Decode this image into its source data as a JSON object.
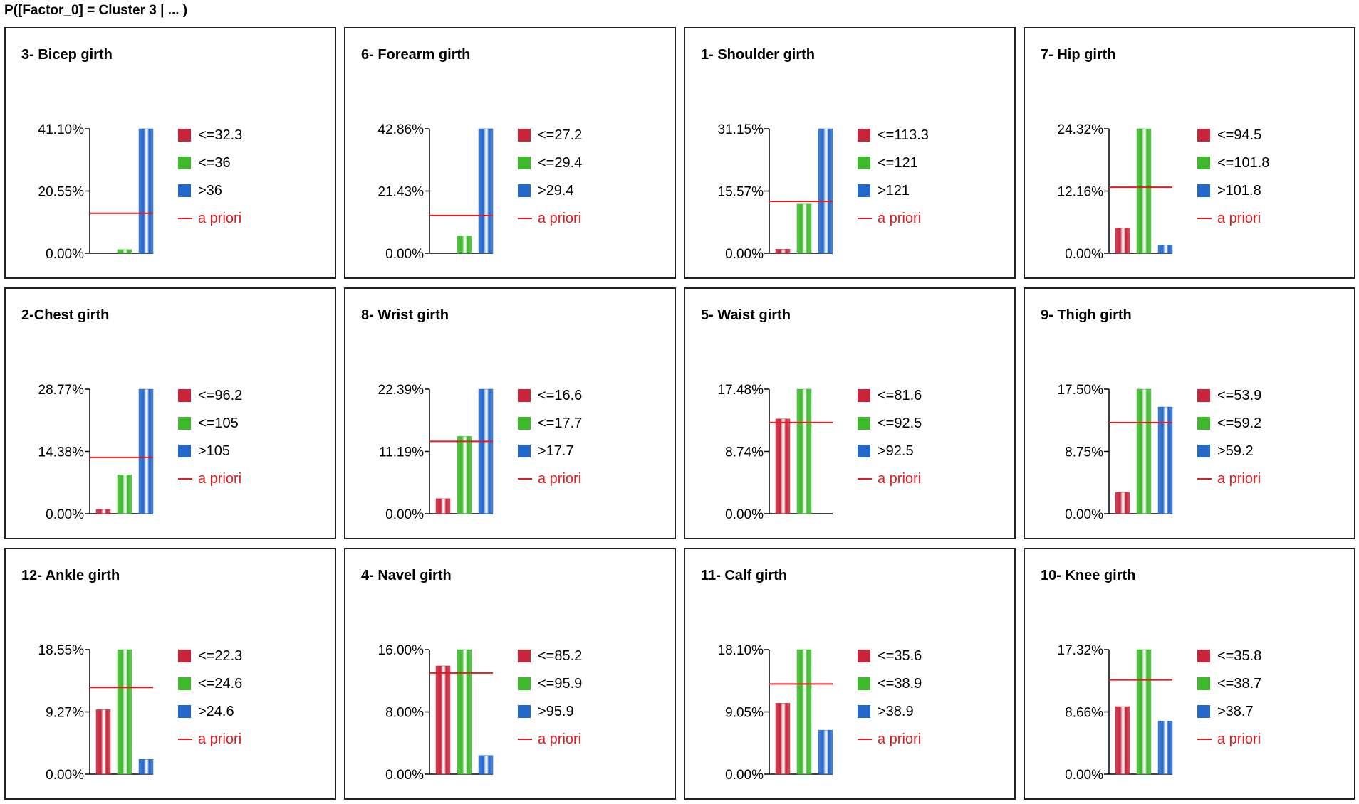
{
  "header": {
    "title": "P([Factor_0] = Cluster 3 | ... )"
  },
  "colors": {
    "bin1": "#c8243a",
    "bin2": "#3fb82e",
    "bin3": "#2468cc",
    "prior": "#e41a1c"
  },
  "legend_prior_label": "a priori",
  "chart_data": [
    {
      "type": "bar",
      "title": "3- Bicep girth",
      "categories": [
        "<=32.3",
        "<=36",
        ">36"
      ],
      "values": [
        0.0,
        1.2,
        41.1
      ],
      "prior": 13.2,
      "yticks": [
        "41.10%",
        "20.55%",
        "0.00%"
      ],
      "ylim": [
        0,
        41.1
      ]
    },
    {
      "type": "bar",
      "title": "6- Forearm girth",
      "categories": [
        "<=27.2",
        "<=29.4",
        ">29.4"
      ],
      "values": [
        0.0,
        6.0,
        42.86
      ],
      "prior": 13.0,
      "yticks": [
        "42.86%",
        "21.43%",
        "0.00%"
      ],
      "ylim": [
        0,
        42.86
      ]
    },
    {
      "type": "bar",
      "title": "1- Shoulder girth",
      "categories": [
        "<=113.3",
        "<=121",
        ">121"
      ],
      "values": [
        1.0,
        12.3,
        31.15
      ],
      "prior": 13.0,
      "yticks": [
        "31.15%",
        "15.57%",
        "0.00%"
      ],
      "ylim": [
        0,
        31.15
      ]
    },
    {
      "type": "bar",
      "title": "7- Hip girth",
      "categories": [
        "<=94.5",
        "<=101.8",
        ">101.8"
      ],
      "values": [
        4.9,
        24.32,
        1.6
      ],
      "prior": 12.9,
      "yticks": [
        "24.32%",
        "12.16%",
        "0.00%"
      ],
      "ylim": [
        0,
        24.32
      ]
    },
    {
      "type": "bar",
      "title": "2-Chest girth",
      "categories": [
        "<=96.2",
        "<=105",
        ">105"
      ],
      "values": [
        1.0,
        9.0,
        28.77
      ],
      "prior": 13.0,
      "yticks": [
        "28.77%",
        "14.38%",
        "0.00%"
      ],
      "ylim": [
        0,
        28.77
      ]
    },
    {
      "type": "bar",
      "title": "8- Wrist girth",
      "categories": [
        "<=16.6",
        "<=17.7",
        ">17.7"
      ],
      "values": [
        2.7,
        13.9,
        22.39
      ],
      "prior": 13.0,
      "yticks": [
        "22.39%",
        "11.19%",
        "0.00%"
      ],
      "ylim": [
        0,
        22.39
      ]
    },
    {
      "type": "bar",
      "title": "5- Waist girth",
      "categories": [
        "<=81.6",
        "<=92.5",
        ">92.5"
      ],
      "values": [
        13.3,
        17.48,
        0.0
      ],
      "prior": 12.8,
      "yticks": [
        "17.48%",
        "8.74%",
        "0.00%"
      ],
      "ylim": [
        0,
        17.48
      ]
    },
    {
      "type": "bar",
      "title": "9- Thigh girth",
      "categories": [
        "<=53.9",
        "<=59.2",
        ">59.2"
      ],
      "values": [
        3.0,
        17.5,
        15.0
      ],
      "prior": 12.8,
      "yticks": [
        "17.50%",
        "8.75%",
        "0.00%"
      ],
      "ylim": [
        0,
        17.5
      ]
    },
    {
      "type": "bar",
      "title": "12- Ankle girth",
      "categories": [
        "<=22.3",
        "<=24.6",
        ">24.6"
      ],
      "values": [
        9.6,
        18.55,
        2.2
      ],
      "prior": 12.9,
      "yticks": [
        "18.55%",
        "9.27%",
        "0.00%"
      ],
      "ylim": [
        0,
        18.55
      ]
    },
    {
      "type": "bar",
      "title": "4- Navel girth",
      "categories": [
        "<=85.2",
        "<=95.9",
        ">95.9"
      ],
      "values": [
        13.9,
        16.0,
        2.4
      ],
      "prior": 13.0,
      "yticks": [
        "16.00%",
        "8.00%",
        "0.00%"
      ],
      "ylim": [
        0,
        16.0
      ]
    },
    {
      "type": "bar",
      "title": "11- Calf girth",
      "categories": [
        "<=35.6",
        "<=38.9",
        ">38.9"
      ],
      "values": [
        10.3,
        18.1,
        6.4
      ],
      "prior": 13.1,
      "yticks": [
        "18.10%",
        "9.05%",
        "0.00%"
      ],
      "ylim": [
        0,
        18.1
      ]
    },
    {
      "type": "bar",
      "title": "10- Knee girth",
      "categories": [
        "<=35.8",
        "<=38.7",
        ">38.7"
      ],
      "values": [
        9.4,
        17.32,
        7.4
      ],
      "prior": 13.1,
      "yticks": [
        "17.32%",
        "8.66%",
        "0.00%"
      ],
      "ylim": [
        0,
        17.32
      ]
    }
  ]
}
